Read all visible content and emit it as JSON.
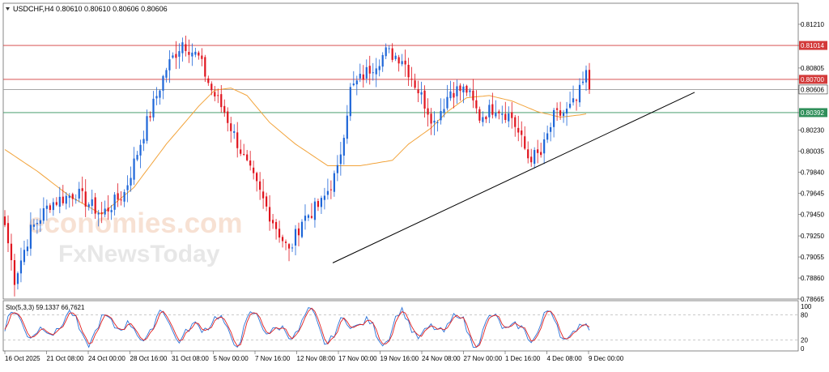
{
  "header": {
    "symbol_line": "USDCHF,H4  0.80610 0.80610 0.80606 0.80606",
    "collapse_icon": "triangle-down-icon"
  },
  "watermark": {
    "line1": "economies.com",
    "line2": "FxNewsToday"
  },
  "colors": {
    "bull": "#1e66d8",
    "bear": "#e0141e",
    "ma": "#f2a33a",
    "trendline": "#000000",
    "resistance": "#d33a3a",
    "support": "#2f8f5a",
    "price_line": "#9a9a9a",
    "stoch_main": "#2a72d8",
    "stoch_signal": "#e02020"
  },
  "chart_data": [
    {
      "type": "candlestick",
      "symbol": "USDCHF",
      "timeframe": "H4",
      "ylim": [
        0.78665,
        0.81405
      ],
      "y_ticks": [
        "0.81210",
        "0.81014",
        "0.80805",
        "0.80700",
        "0.80606",
        "0.80392",
        "0.80230",
        "0.80035",
        "0.79840",
        "0.79645",
        "0.79450",
        "0.79250",
        "0.79055",
        "0.78860",
        "0.78665"
      ],
      "x_ticks": [
        "16 Oct 2025",
        "21 Oct 08:00",
        "24 Oct 00:00",
        "28 Oct 16:00",
        "31 Oct 08:00",
        "5 Nov 00:00",
        "7 Nov 16:00",
        "12 Nov 08:00",
        "17 Nov 00:00",
        "19 Nov 16:00",
        "24 Nov 08:00",
        "27 Nov 00:00",
        "1 Dec 16:00",
        "4 Dec 08:00",
        "9 Dec 00:00"
      ],
      "horizontal_levels": [
        {
          "value": 0.81014,
          "label": "0.81014",
          "role": "resistance"
        },
        {
          "value": 0.807,
          "label": "0.80700",
          "role": "resistance"
        },
        {
          "value": 0.80606,
          "label": "0.80606",
          "role": "current"
        },
        {
          "value": 0.80392,
          "label": "0.80392",
          "role": "support"
        }
      ],
      "trendline": {
        "start": {
          "bar": 0.45,
          "price": 0.79
        },
        "end": {
          "bar": 1.0,
          "price": 0.8058
        }
      },
      "waypoints": [
        [
          0,
          0.7935
        ],
        [
          3,
          0.7885
        ],
        [
          8,
          0.793
        ],
        [
          14,
          0.7955
        ],
        [
          22,
          0.7965
        ],
        [
          30,
          0.7945
        ],
        [
          37,
          0.7965
        ],
        [
          44,
          0.803
        ],
        [
          50,
          0.808
        ],
        [
          55,
          0.8105
        ],
        [
          60,
          0.809
        ],
        [
          64,
          0.806
        ],
        [
          68,
          0.804
        ],
        [
          75,
          0.799
        ],
        [
          82,
          0.7945
        ],
        [
          88,
          0.791
        ],
        [
          92,
          0.794
        ],
        [
          98,
          0.7955
        ],
        [
          103,
          0.7985
        ],
        [
          107,
          0.806
        ],
        [
          113,
          0.808
        ],
        [
          118,
          0.8095
        ],
        [
          123,
          0.809
        ],
        [
          128,
          0.806
        ],
        [
          133,
          0.803
        ],
        [
          138,
          0.806
        ],
        [
          143,
          0.806
        ],
        [
          147,
          0.8035
        ],
        [
          152,
          0.8045
        ],
        [
          157,
          0.8035
        ],
        [
          162,
          0.7998
        ],
        [
          166,
          0.8
        ],
        [
          170,
          0.8035
        ],
        [
          174,
          0.804
        ],
        [
          177,
          0.805
        ],
        [
          180,
          0.8074
        ],
        [
          181,
          0.80606
        ]
      ],
      "ma_points": [
        [
          0,
          0.8005
        ],
        [
          10,
          0.7985
        ],
        [
          20,
          0.7962
        ],
        [
          30,
          0.7945
        ],
        [
          40,
          0.797
        ],
        [
          50,
          0.801
        ],
        [
          60,
          0.8045
        ],
        [
          65,
          0.806
        ],
        [
          70,
          0.8062
        ],
        [
          75,
          0.8055
        ],
        [
          82,
          0.803
        ],
        [
          90,
          0.801
        ],
        [
          100,
          0.799
        ],
        [
          110,
          0.799
        ],
        [
          120,
          0.7995
        ],
        [
          125,
          0.801
        ],
        [
          132,
          0.8025
        ],
        [
          137,
          0.804
        ],
        [
          143,
          0.8053
        ],
        [
          150,
          0.8055
        ],
        [
          157,
          0.805
        ],
        [
          165,
          0.804
        ],
        [
          172,
          0.8035
        ],
        [
          178,
          0.8037
        ],
        [
          180,
          0.8038
        ]
      ]
    },
    {
      "type": "line",
      "title": "Sto(5,3,3) 59.1337 66.7621",
      "ylim": [
        0,
        100
      ],
      "y_ticks": [
        "100",
        "80",
        "20",
        "0"
      ],
      "levels": [
        80,
        20
      ],
      "series": [
        {
          "name": "main",
          "color": "#2a72d8"
        },
        {
          "name": "signal",
          "color": "#e02020"
        }
      ]
    }
  ]
}
